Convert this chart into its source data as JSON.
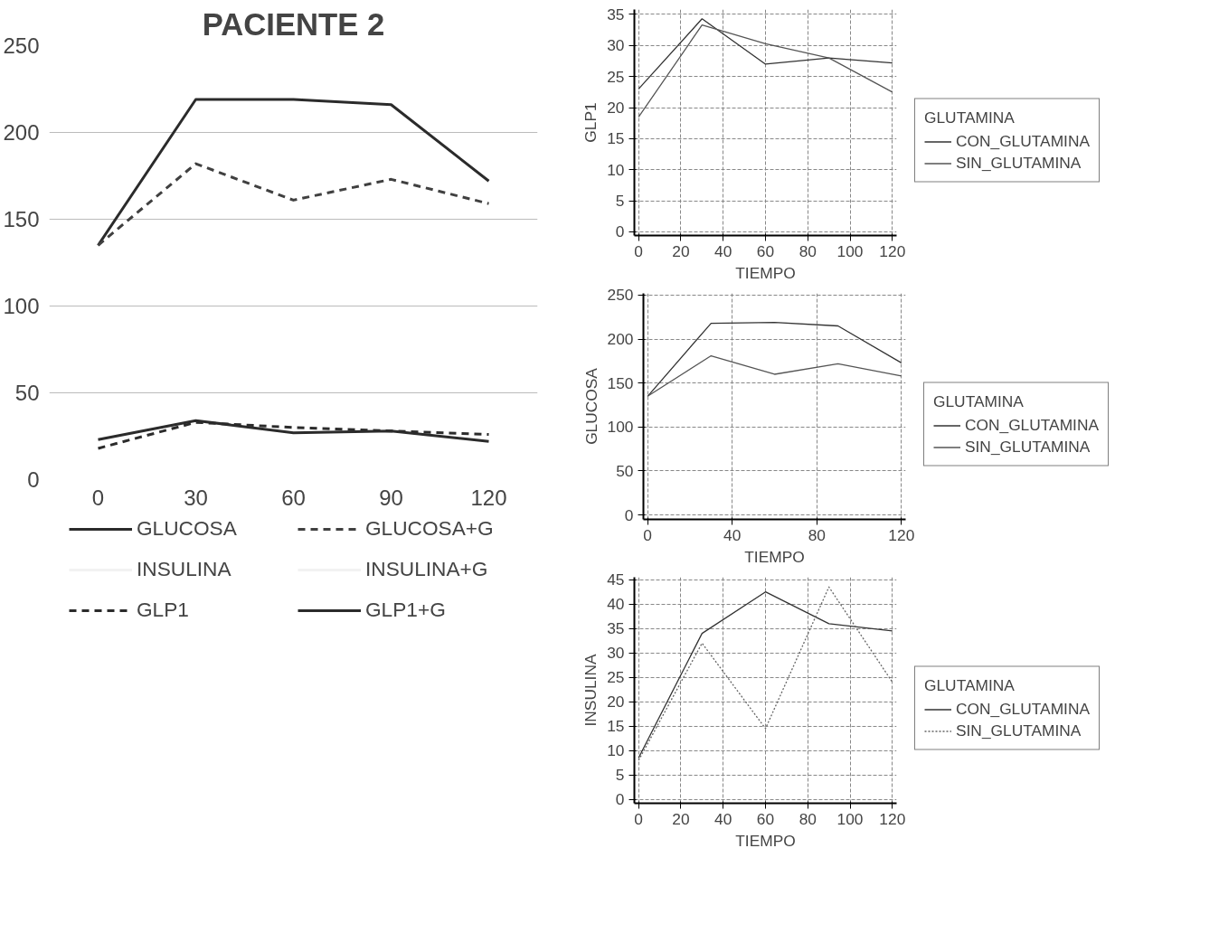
{
  "chart_data": [
    {
      "type": "line",
      "title": "PACIENTE 2",
      "categories": [
        "0",
        "30",
        "60",
        "90",
        "120"
      ],
      "ylim": [
        0,
        250
      ],
      "yticks": [
        0,
        50,
        100,
        150,
        200,
        250
      ],
      "grid": "y",
      "legend": "bottom",
      "series": [
        {
          "name": "GLUCOSA",
          "color": "#2b2b2b",
          "line_style": "solid",
          "values": [
            135,
            219,
            219,
            216,
            172
          ]
        },
        {
          "name": "INSULINA",
          "color": "#f2f2f2",
          "line_style": "solid",
          "values": [
            null,
            null,
            null,
            null,
            null
          ]
        },
        {
          "name": "GLP1",
          "color": "#2b2b2b",
          "line_style": "dashed",
          "values": [
            18,
            33,
            30,
            28,
            26
          ]
        },
        {
          "name": "GLUCOSA+G",
          "color": "#404040",
          "line_style": "dashed",
          "values": [
            135,
            182,
            161,
            173,
            159
          ]
        },
        {
          "name": "INSULINA+G",
          "color": "#f2f2f2",
          "line_style": "solid",
          "values": [
            null,
            null,
            null,
            null,
            null
          ]
        },
        {
          "name": "GLP1+G",
          "color": "#2b2b2b",
          "line_style": "solid",
          "values": [
            23,
            34,
            27,
            28,
            22
          ]
        }
      ]
    },
    {
      "type": "line",
      "xlabel": "TIEMPO",
      "ylabel": "GLP1",
      "legend_title": "GLUTAMINA",
      "x": [
        0,
        30,
        60,
        90,
        120
      ],
      "xlim": [
        -2,
        122
      ],
      "xticks": [
        0,
        20,
        40,
        60,
        80,
        100,
        120
      ],
      "ylim": [
        -0.6,
        35.8
      ],
      "yticks": [
        0,
        5,
        10,
        15,
        20,
        25,
        30,
        35
      ],
      "grid": true,
      "legend": "right",
      "series": [
        {
          "name": "CON_GLUTAMINA",
          "color": "#333333",
          "line_style": "solid",
          "values": [
            23,
            34.3,
            27,
            28,
            27.2
          ]
        },
        {
          "name": "SIN_GLUTAMINA",
          "color": "#555555",
          "line_style": "solid",
          "values": [
            18.5,
            33.3,
            30.3,
            28,
            22.5
          ]
        }
      ]
    },
    {
      "type": "line",
      "xlabel": "TIEMPO",
      "ylabel": "GLUCOSA",
      "legend_title": "GLUTAMINA",
      "x": [
        0,
        30,
        60,
        90,
        120
      ],
      "xlim": [
        -2,
        122
      ],
      "xticks": [
        0,
        40,
        80,
        120
      ],
      "ylim": [
        -5,
        252
      ],
      "yticks": [
        0,
        50,
        100,
        150,
        200,
        250
      ],
      "grid": true,
      "legend": "right",
      "series": [
        {
          "name": "CON_GLUTAMINA",
          "color": "#333333",
          "line_style": "solid",
          "values": [
            135,
            218,
            219,
            215,
            173
          ]
        },
        {
          "name": "SIN_GLUTAMINA",
          "color": "#555555",
          "line_style": "solid",
          "values": [
            135,
            181,
            160,
            172,
            158
          ]
        }
      ]
    },
    {
      "type": "line",
      "xlabel": "TIEMPO",
      "ylabel": "INSULINA",
      "legend_title": "GLUTAMINA",
      "x": [
        0,
        30,
        60,
        90,
        120
      ],
      "xlim": [
        -2,
        122
      ],
      "xticks": [
        0,
        20,
        40,
        60,
        80,
        100,
        120
      ],
      "ylim": [
        -0.8,
        45.5
      ],
      "yticks": [
        0,
        5,
        10,
        15,
        20,
        25,
        30,
        35,
        40,
        45
      ],
      "grid": true,
      "legend": "right",
      "series": [
        {
          "name": "CON_GLUTAMINA",
          "color": "#333333",
          "line_style": "solid",
          "values": [
            8.5,
            34,
            42.5,
            36,
            34.5
          ]
        },
        {
          "name": "SIN_GLUTAMINA",
          "color": "#666666",
          "line_style": "dotted",
          "values": [
            8,
            32,
            14.5,
            43.5,
            24
          ]
        }
      ]
    }
  ]
}
